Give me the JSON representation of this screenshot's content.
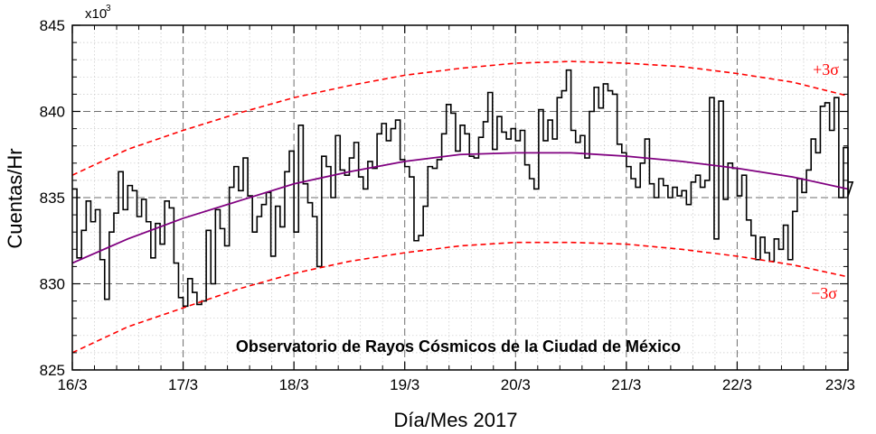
{
  "colors": {
    "data": "#000000",
    "fit": "#800080",
    "sigma": "#ff0000",
    "grid_major": "#6e6e6e",
    "grid_minor": "#c8c8c8"
  },
  "chart_data": {
    "type": "line",
    "style": "step",
    "title": "",
    "xlabel": "Día/Mes 2017",
    "ylabel": "Cuentas/Hr",
    "y_multiplier": {
      "base": "x10",
      "exponent": "3"
    },
    "annotation": "Observatorio de Rayos Cósmicos de la Ciudad de México",
    "grid": true,
    "xlim": [
      0,
      7
    ],
    "ylim": [
      825,
      845
    ],
    "x_ticks": [
      {
        "value": 0,
        "label": "16/3"
      },
      {
        "value": 1,
        "label": "17/3"
      },
      {
        "value": 2,
        "label": "18/3"
      },
      {
        "value": 3,
        "label": "19/3"
      },
      {
        "value": 4,
        "label": "20/3"
      },
      {
        "value": 5,
        "label": "21/3"
      },
      {
        "value": 6,
        "label": "22/3"
      },
      {
        "value": 7,
        "label": "23/3"
      }
    ],
    "y_ticks": [
      {
        "value": 825,
        "label": "825"
      },
      {
        "value": 830,
        "label": "830"
      },
      {
        "value": 835,
        "label": "835"
      },
      {
        "value": 840,
        "label": "840"
      },
      {
        "value": 845,
        "label": "845"
      }
    ],
    "series": [
      {
        "kind": "counts",
        "step_days": 0.04167,
        "values": [
          835.5,
          831.5,
          833.1,
          834.8,
          833.6,
          834.3,
          831.4,
          829.1,
          833.0,
          834.1,
          836.5,
          834.3,
          835.7,
          835.4,
          833.9,
          834.9,
          833.6,
          831.5,
          833.5,
          832.3,
          834.8,
          834.4,
          831.2,
          829.2,
          828.7,
          830.3,
          829.5,
          828.8,
          829.0,
          833.1,
          830.0,
          834.3,
          833.2,
          832.2,
          835.6,
          836.8,
          835.4,
          837.3,
          835.1,
          833.0,
          833.9,
          834.6,
          835.3,
          831.6,
          834.5,
          833.3,
          836.5,
          837.7,
          833.0,
          839.2,
          835.8,
          834.7,
          833.9,
          831.0,
          837.4,
          836.8,
          835.0,
          838.6,
          836.6,
          836.3,
          837.3,
          838.2,
          836.2,
          835.5,
          837.1,
          836.7,
          838.7,
          839.3,
          838.3,
          839.0,
          839.5,
          837.2,
          836.8,
          836.2,
          832.5,
          832.8,
          834.5,
          836.8,
          836.7,
          837.2,
          838.7,
          840.4,
          839.9,
          837.7,
          839.2,
          838.7,
          837.4,
          837.3,
          838.5,
          839.4,
          841.1,
          837.8,
          839.7,
          838.8,
          838.4,
          839.0,
          838.3,
          838.9,
          836.9,
          836.1,
          835.5,
          840.1,
          838.3,
          839.5,
          838.4,
          840.8,
          841.2,
          842.4,
          838.9,
          838.2,
          838.6,
          837.3,
          840.0,
          841.4,
          840.2,
          841.6,
          841.2,
          841.0,
          838.1,
          837.6,
          836.8,
          836.1,
          835.6,
          837.0,
          838.4,
          835.8,
          835.0,
          836.1,
          835.7,
          835.0,
          835.6,
          835.1,
          835.4,
          834.6,
          835.9,
          836.3,
          835.6,
          836.0,
          840.8,
          832.6,
          840.6,
          834.9,
          837.0,
          836.7,
          835.1,
          836.3,
          833.7,
          832.8,
          831.4,
          832.7,
          831.8,
          831.3,
          832.6,
          832.0,
          833.4,
          831.4,
          834.2,
          836.1,
          835.3,
          836.6,
          838.4,
          837.6,
          840.3,
          840.5,
          838.9,
          840.8,
          835.0,
          837.9,
          835.1,
          835.9
        ]
      },
      {
        "kind": "fit",
        "x": [
          0,
          0.5,
          1,
          1.5,
          2,
          2.5,
          3,
          3.5,
          4,
          4.5,
          5,
          5.5,
          6,
          6.5,
          7
        ],
        "values": [
          831.2,
          832.6,
          833.8,
          834.8,
          835.8,
          836.5,
          837.1,
          837.5,
          837.6,
          837.6,
          837.4,
          837.1,
          836.7,
          836.2,
          835.5
        ]
      },
      {
        "kind": "plus_3sigma",
        "label": "+3σ",
        "x": [
          0,
          0.5,
          1,
          1.5,
          2,
          2.5,
          3,
          3.5,
          4,
          4.5,
          5,
          5.5,
          6,
          6.5,
          7
        ],
        "values": [
          836.3,
          837.8,
          838.9,
          839.9,
          840.8,
          841.5,
          842.1,
          842.5,
          842.8,
          842.9,
          842.8,
          842.6,
          842.2,
          841.7,
          840.9
        ]
      },
      {
        "kind": "minus_3sigma",
        "label": "−3σ",
        "x": [
          0,
          0.5,
          1,
          1.5,
          2,
          2.5,
          3,
          3.5,
          4,
          4.5,
          5,
          5.5,
          6,
          6.5,
          7
        ],
        "values": [
          826.0,
          827.5,
          828.6,
          829.7,
          830.6,
          831.3,
          831.8,
          832.2,
          832.4,
          832.4,
          832.3,
          832.0,
          831.6,
          831.1,
          830.4
        ]
      }
    ]
  }
}
